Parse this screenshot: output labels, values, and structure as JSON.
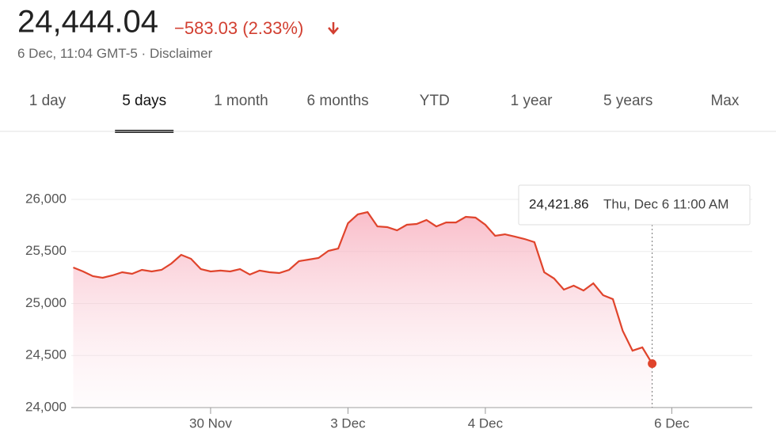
{
  "header": {
    "price": "24,444.04",
    "change": "−583.03 (2.33%)",
    "date": "6 Dec, 11:04 GMT-5",
    "separator": "·",
    "disclaimer": "Disclaimer"
  },
  "tabs": {
    "items": [
      "1 day",
      "5 days",
      "1 month",
      "6 months",
      "YTD",
      "1 year",
      "5 years",
      "Max"
    ],
    "selected": 1
  },
  "chart_data": {
    "type": "line",
    "color": "#e0442c",
    "grid": true,
    "x": [
      0,
      1,
      2,
      3,
      4,
      5,
      6,
      7,
      8,
      9,
      10,
      11,
      12,
      13,
      14,
      15,
      16,
      17,
      18,
      19,
      20,
      21,
      22,
      23,
      24,
      25,
      26,
      27,
      28,
      29,
      30,
      31,
      32,
      33,
      34,
      35,
      36,
      37,
      38,
      39,
      40,
      41,
      42,
      43,
      44,
      45,
      46,
      47,
      48,
      49,
      50,
      51,
      52,
      53,
      54,
      55,
      56,
      57,
      58,
      59
    ],
    "values": [
      25346,
      25308,
      25262,
      25247,
      25270,
      25300,
      25285,
      25323,
      25308,
      25323,
      25384,
      25468,
      25430,
      25331,
      25308,
      25316,
      25308,
      25331,
      25278,
      25316,
      25300,
      25293,
      25323,
      25407,
      25422,
      25437,
      25506,
      25528,
      25772,
      25856,
      25878,
      25741,
      25734,
      25703,
      25757,
      25764,
      25802,
      25741,
      25779,
      25779,
      25833,
      25825,
      25757,
      25650,
      25665,
      25643,
      25620,
      25589,
      25300,
      25240,
      25133,
      25171,
      25125,
      25194,
      25080,
      25042,
      24738,
      24547,
      24578,
      24421.86
    ],
    "xlim": [
      -0.2,
      69.2
    ],
    "xticks": [
      {
        "value": 14,
        "label": "30 Nov"
      },
      {
        "value": 28,
        "label": "3 Dec"
      },
      {
        "value": 42,
        "label": "4 Dec"
      },
      {
        "value": 61,
        "label": "6 Dec"
      }
    ],
    "ylim": [
      24000,
      26000
    ],
    "yticks": [
      {
        "value": 24000,
        "label": "24,000"
      },
      {
        "value": 24500,
        "label": "24,500"
      },
      {
        "value": 25000,
        "label": "25,000"
      },
      {
        "value": 25500,
        "label": "25,500"
      },
      {
        "value": 26000,
        "label": "26,000"
      }
    ],
    "tooltip": {
      "value": "24,421.86",
      "time": "Thu, Dec 6 11:00 AM"
    }
  }
}
